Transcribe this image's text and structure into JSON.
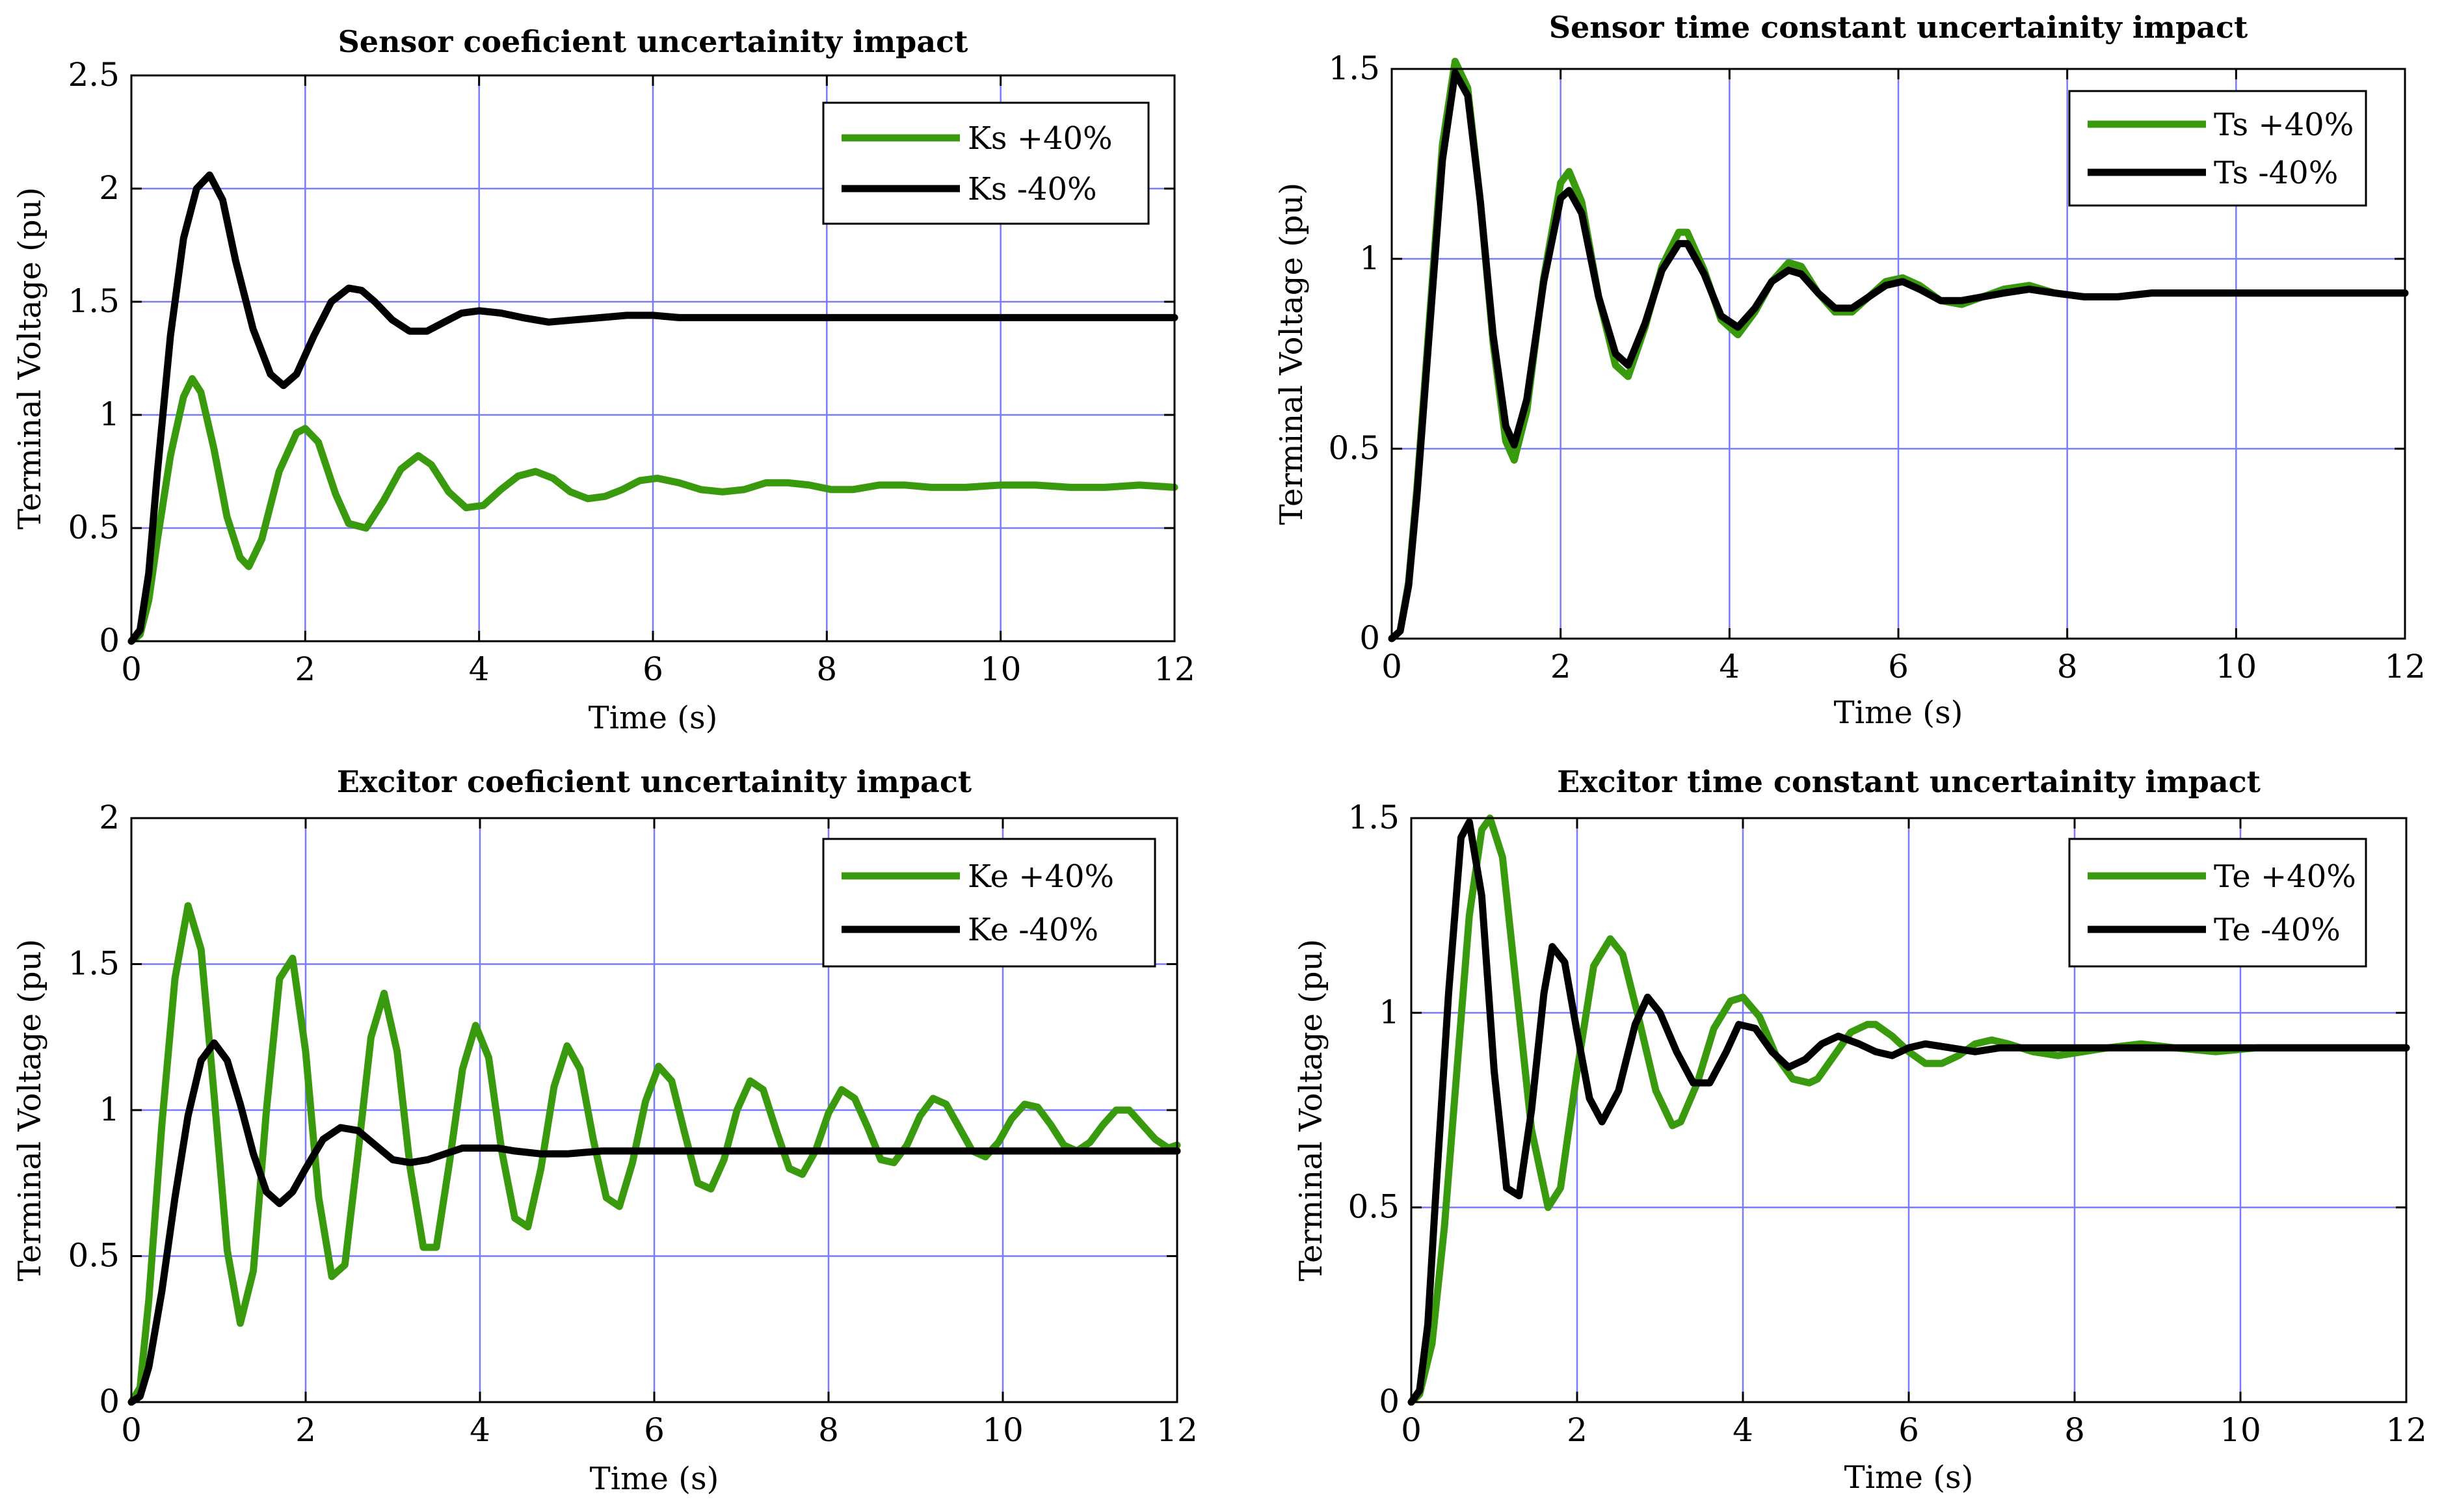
{
  "colors": {
    "green": "#3a9a0e",
    "black": "#000000",
    "grid": "#7a7aff"
  },
  "chart_data": [
    {
      "type": "line",
      "title": "Sensor coeficient uncertainity impact",
      "xlabel": "Time (s)",
      "ylabel": "Terminal Voltage (pu)",
      "xlim": [
        0,
        12
      ],
      "ylim": [
        0,
        2.5
      ],
      "xticks": [
        0,
        2,
        4,
        6,
        8,
        10,
        12
      ],
      "xtick_labels": [
        "0",
        "2",
        "4",
        "6",
        "8",
        "10",
        "12"
      ],
      "yticks": [
        0,
        0.5,
        1,
        1.5,
        2,
        2.5
      ],
      "ytick_labels": [
        "0",
        "0.5",
        "1",
        "1.5",
        "2",
        "2.5"
      ],
      "legend_position": "top-right",
      "grid": true,
      "series": [
        {
          "name": "Ks +40%",
          "color": "#3a9a0e",
          "x": [
            0,
            0.1,
            0.2,
            0.3,
            0.45,
            0.6,
            0.7,
            0.8,
            0.95,
            1.1,
            1.25,
            1.35,
            1.5,
            1.7,
            1.9,
            2.0,
            2.15,
            2.35,
            2.5,
            2.7,
            2.9,
            3.1,
            3.3,
            3.45,
            3.65,
            3.85,
            4.05,
            4.25,
            4.45,
            4.65,
            4.85,
            5.05,
            5.25,
            5.45,
            5.65,
            5.85,
            6.05,
            6.3,
            6.55,
            6.8,
            7.05,
            7.3,
            7.55,
            7.8,
            8.05,
            8.3,
            8.6,
            8.9,
            9.2,
            9.6,
            10.0,
            10.4,
            10.8,
            11.2,
            11.6,
            12.0
          ],
          "y": [
            0,
            0.03,
            0.18,
            0.45,
            0.82,
            1.08,
            1.16,
            1.1,
            0.85,
            0.55,
            0.37,
            0.33,
            0.45,
            0.75,
            0.92,
            0.94,
            0.88,
            0.65,
            0.52,
            0.5,
            0.62,
            0.76,
            0.82,
            0.78,
            0.66,
            0.59,
            0.6,
            0.67,
            0.73,
            0.75,
            0.72,
            0.66,
            0.63,
            0.64,
            0.67,
            0.71,
            0.72,
            0.7,
            0.67,
            0.66,
            0.67,
            0.7,
            0.7,
            0.69,
            0.67,
            0.67,
            0.69,
            0.69,
            0.68,
            0.68,
            0.69,
            0.69,
            0.68,
            0.68,
            0.69,
            0.68
          ]
        },
        {
          "name": "Ks -40%",
          "color": "#000000",
          "x": [
            0,
            0.1,
            0.2,
            0.3,
            0.45,
            0.6,
            0.75,
            0.9,
            1.05,
            1.2,
            1.4,
            1.6,
            1.75,
            1.9,
            2.1,
            2.3,
            2.5,
            2.65,
            2.8,
            3.0,
            3.2,
            3.4,
            3.6,
            3.8,
            4.0,
            4.25,
            4.5,
            4.8,
            5.1,
            5.4,
            5.7,
            6.0,
            6.3,
            6.7,
            7.2,
            7.8,
            8.5,
            9.2,
            10.0,
            11.0,
            12.0
          ],
          "y": [
            0,
            0.05,
            0.3,
            0.75,
            1.35,
            1.78,
            2.0,
            2.06,
            1.95,
            1.68,
            1.38,
            1.18,
            1.13,
            1.18,
            1.35,
            1.5,
            1.56,
            1.55,
            1.5,
            1.42,
            1.37,
            1.37,
            1.41,
            1.45,
            1.46,
            1.45,
            1.43,
            1.41,
            1.42,
            1.43,
            1.44,
            1.44,
            1.43,
            1.43,
            1.43,
            1.43,
            1.43,
            1.43,
            1.43,
            1.43,
            1.43
          ]
        }
      ]
    },
    {
      "type": "line",
      "title": "Sensor time constant uncertainity impact",
      "xlabel": "Time (s)",
      "ylabel": "Terminal Voltage (pu)",
      "xlim": [
        0,
        12
      ],
      "ylim": [
        0,
        1.5
      ],
      "xticks": [
        0,
        2,
        4,
        6,
        8,
        10,
        12
      ],
      "xtick_labels": [
        "0",
        "2",
        "4",
        "6",
        "8",
        "10",
        "12"
      ],
      "yticks": [
        0,
        0.5,
        1,
        1.5
      ],
      "ytick_labels": [
        "0",
        "0.5",
        "1",
        "1.5"
      ],
      "legend_position": "top-right",
      "grid": true,
      "series": [
        {
          "name": "Ts +40%",
          "color": "#3a9a0e",
          "x": [
            0,
            0.1,
            0.2,
            0.3,
            0.45,
            0.6,
            0.75,
            0.9,
            1.05,
            1.2,
            1.35,
            1.45,
            1.6,
            1.8,
            2.0,
            2.1,
            2.25,
            2.45,
            2.65,
            2.8,
            3.0,
            3.2,
            3.4,
            3.5,
            3.7,
            3.9,
            4.1,
            4.3,
            4.5,
            4.7,
            4.85,
            5.05,
            5.25,
            5.45,
            5.65,
            5.85,
            6.05,
            6.25,
            6.5,
            6.75,
            7.0,
            7.25,
            7.55,
            7.85,
            8.2,
            8.6,
            9.0,
            9.5,
            10.0,
            10.5,
            11.0,
            11.5,
            12.0
          ],
          "y": [
            0,
            0.02,
            0.15,
            0.4,
            0.85,
            1.3,
            1.52,
            1.45,
            1.15,
            0.78,
            0.52,
            0.47,
            0.6,
            0.95,
            1.2,
            1.23,
            1.15,
            0.9,
            0.72,
            0.69,
            0.82,
            0.98,
            1.07,
            1.07,
            0.97,
            0.84,
            0.8,
            0.86,
            0.94,
            0.99,
            0.98,
            0.91,
            0.86,
            0.86,
            0.9,
            0.94,
            0.95,
            0.93,
            0.89,
            0.88,
            0.9,
            0.92,
            0.93,
            0.91,
            0.9,
            0.9,
            0.91,
            0.91,
            0.91,
            0.91,
            0.91,
            0.91,
            0.91
          ]
        },
        {
          "name": "Ts -40%",
          "color": "#000000",
          "x": [
            0,
            0.1,
            0.2,
            0.3,
            0.45,
            0.6,
            0.75,
            0.9,
            1.05,
            1.2,
            1.35,
            1.45,
            1.6,
            1.8,
            2.0,
            2.1,
            2.25,
            2.45,
            2.65,
            2.8,
            3.0,
            3.2,
            3.4,
            3.5,
            3.7,
            3.9,
            4.1,
            4.3,
            4.5,
            4.7,
            4.85,
            5.05,
            5.25,
            5.45,
            5.65,
            5.85,
            6.05,
            6.25,
            6.5,
            6.75,
            7.0,
            7.25,
            7.55,
            7.85,
            8.2,
            8.6,
            9.0,
            9.5,
            10.0,
            10.5,
            11.0,
            11.5,
            12.0
          ],
          "y": [
            0,
            0.02,
            0.14,
            0.38,
            0.82,
            1.26,
            1.49,
            1.43,
            1.15,
            0.8,
            0.56,
            0.51,
            0.63,
            0.94,
            1.16,
            1.18,
            1.12,
            0.9,
            0.75,
            0.72,
            0.83,
            0.97,
            1.04,
            1.04,
            0.96,
            0.85,
            0.82,
            0.87,
            0.94,
            0.97,
            0.96,
            0.91,
            0.87,
            0.87,
            0.9,
            0.93,
            0.94,
            0.92,
            0.89,
            0.89,
            0.9,
            0.91,
            0.92,
            0.91,
            0.9,
            0.9,
            0.91,
            0.91,
            0.91,
            0.91,
            0.91,
            0.91,
            0.91
          ]
        }
      ]
    },
    {
      "type": "line",
      "title": "Excitor coeficient uncertainity impact",
      "xlabel": "Time (s)",
      "ylabel": "Terminal Voltage (pu)",
      "xlim": [
        0,
        12
      ],
      "ylim": [
        0,
        2
      ],
      "xticks": [
        0,
        2,
        4,
        6,
        8,
        10,
        12
      ],
      "xtick_labels": [
        "0",
        "2",
        "4",
        "6",
        "8",
        "10",
        "12"
      ],
      "yticks": [
        0,
        0.5,
        1,
        1.5,
        2
      ],
      "ytick_labels": [
        "0",
        "0.5",
        "1",
        "1.5",
        "2"
      ],
      "legend_position": "top-right",
      "grid": true,
      "series": [
        {
          "name": "Ke +40%",
          "color": "#3a9a0e",
          "x": [
            0,
            0.1,
            0.2,
            0.35,
            0.5,
            0.65,
            0.8,
            0.95,
            1.1,
            1.25,
            1.4,
            1.55,
            1.7,
            1.85,
            2.0,
            2.15,
            2.3,
            2.45,
            2.6,
            2.75,
            2.9,
            3.05,
            3.2,
            3.35,
            3.5,
            3.65,
            3.8,
            3.95,
            4.1,
            4.25,
            4.4,
            4.55,
            4.7,
            4.85,
            5.0,
            5.15,
            5.3,
            5.45,
            5.6,
            5.75,
            5.9,
            6.05,
            6.2,
            6.35,
            6.5,
            6.65,
            6.8,
            6.95,
            7.1,
            7.25,
            7.4,
            7.55,
            7.7,
            7.85,
            8.0,
            8.15,
            8.3,
            8.45,
            8.6,
            8.75,
            8.9,
            9.05,
            9.2,
            9.35,
            9.5,
            9.65,
            9.8,
            9.95,
            10.1,
            10.25,
            10.4,
            10.55,
            10.7,
            10.85,
            11.0,
            11.15,
            11.3,
            11.45,
            11.6,
            11.75,
            11.9,
            12.0
          ],
          "y": [
            0,
            0.05,
            0.35,
            0.95,
            1.45,
            1.7,
            1.55,
            1.05,
            0.52,
            0.27,
            0.45,
            1.0,
            1.45,
            1.52,
            1.2,
            0.7,
            0.43,
            0.47,
            0.85,
            1.25,
            1.4,
            1.2,
            0.8,
            0.53,
            0.53,
            0.82,
            1.14,
            1.29,
            1.18,
            0.86,
            0.63,
            0.6,
            0.8,
            1.08,
            1.22,
            1.14,
            0.9,
            0.7,
            0.67,
            0.82,
            1.03,
            1.15,
            1.1,
            0.92,
            0.75,
            0.73,
            0.83,
            1.0,
            1.1,
            1.07,
            0.93,
            0.8,
            0.78,
            0.86,
            0.99,
            1.07,
            1.04,
            0.94,
            0.83,
            0.82,
            0.88,
            0.98,
            1.04,
            1.02,
            0.94,
            0.86,
            0.84,
            0.89,
            0.97,
            1.02,
            1.01,
            0.95,
            0.88,
            0.86,
            0.89,
            0.95,
            1.0,
            1.0,
            0.95,
            0.9,
            0.87,
            0.88
          ]
        },
        {
          "name": "Ke -40%",
          "color": "#000000",
          "x": [
            0,
            0.1,
            0.2,
            0.35,
            0.5,
            0.65,
            0.8,
            0.95,
            1.1,
            1.25,
            1.4,
            1.55,
            1.7,
            1.85,
            2.0,
            2.2,
            2.4,
            2.6,
            2.8,
            3.0,
            3.2,
            3.4,
            3.6,
            3.8,
            4.0,
            4.2,
            4.4,
            4.7,
            5.0,
            5.4,
            5.8,
            6.2,
            6.8,
            7.5,
            8.5,
            9.5,
            10.5,
            11.5,
            12.0
          ],
          "y": [
            0,
            0.02,
            0.12,
            0.38,
            0.7,
            0.98,
            1.17,
            1.23,
            1.17,
            1.02,
            0.85,
            0.72,
            0.68,
            0.72,
            0.8,
            0.9,
            0.94,
            0.93,
            0.88,
            0.83,
            0.82,
            0.83,
            0.85,
            0.87,
            0.87,
            0.87,
            0.86,
            0.85,
            0.85,
            0.86,
            0.86,
            0.86,
            0.86,
            0.86,
            0.86,
            0.86,
            0.86,
            0.86,
            0.86
          ]
        }
      ]
    },
    {
      "type": "line",
      "title": "Excitor time constant uncertainity impact",
      "xlabel": "Time (s)",
      "ylabel": "Terminal Voltage (pu)",
      "xlim": [
        0,
        12
      ],
      "ylim": [
        0,
        1.5
      ],
      "xticks": [
        0,
        2,
        4,
        6,
        8,
        10,
        12
      ],
      "xtick_labels": [
        "0",
        "2",
        "4",
        "6",
        "8",
        "10",
        "12"
      ],
      "yticks": [
        0,
        0.5,
        1,
        1.5
      ],
      "ytick_labels": [
        "0",
        "0.5",
        "1",
        "1.5"
      ],
      "legend_position": "top-right",
      "grid": true,
      "series": [
        {
          "name": "Te +40%",
          "color": "#3a9a0e",
          "x": [
            0,
            0.1,
            0.25,
            0.4,
            0.55,
            0.7,
            0.85,
            0.95,
            1.1,
            1.25,
            1.45,
            1.65,
            1.8,
            2.0,
            2.2,
            2.4,
            2.55,
            2.75,
            2.95,
            3.15,
            3.25,
            3.45,
            3.65,
            3.85,
            4.0,
            4.2,
            4.4,
            4.6,
            4.8,
            4.9,
            5.1,
            5.3,
            5.5,
            5.6,
            5.8,
            6.0,
            6.2,
            6.4,
            6.6,
            6.8,
            7.0,
            7.2,
            7.5,
            7.8,
            8.1,
            8.4,
            8.8,
            9.2,
            9.7,
            10.2,
            10.8,
            11.4,
            12.0
          ],
          "y": [
            0,
            0.02,
            0.15,
            0.45,
            0.85,
            1.25,
            1.47,
            1.5,
            1.4,
            1.1,
            0.7,
            0.5,
            0.55,
            0.85,
            1.12,
            1.19,
            1.15,
            0.98,
            0.8,
            0.71,
            0.72,
            0.82,
            0.96,
            1.03,
            1.04,
            0.99,
            0.89,
            0.83,
            0.82,
            0.83,
            0.89,
            0.95,
            0.97,
            0.97,
            0.94,
            0.9,
            0.87,
            0.87,
            0.89,
            0.92,
            0.93,
            0.92,
            0.9,
            0.89,
            0.9,
            0.91,
            0.92,
            0.91,
            0.9,
            0.91,
            0.91,
            0.91,
            0.91
          ]
        },
        {
          "name": "Te -40%",
          "color": "#000000",
          "x": [
            0,
            0.1,
            0.2,
            0.3,
            0.45,
            0.6,
            0.7,
            0.85,
            1.0,
            1.15,
            1.3,
            1.45,
            1.6,
            1.7,
            1.85,
            2.0,
            2.15,
            2.3,
            2.5,
            2.7,
            2.85,
            3.0,
            3.2,
            3.4,
            3.6,
            3.8,
            3.95,
            4.15,
            4.35,
            4.55,
            4.75,
            4.95,
            5.15,
            5.4,
            5.6,
            5.8,
            6.0,
            6.2,
            6.5,
            6.8,
            7.1,
            7.5,
            8.0,
            8.5,
            9.0,
            10.0,
            11.0,
            12.0
          ],
          "y": [
            0,
            0.03,
            0.2,
            0.55,
            1.05,
            1.45,
            1.49,
            1.3,
            0.85,
            0.55,
            0.53,
            0.75,
            1.05,
            1.17,
            1.13,
            0.95,
            0.78,
            0.72,
            0.8,
            0.97,
            1.04,
            1.0,
            0.9,
            0.82,
            0.82,
            0.9,
            0.97,
            0.96,
            0.9,
            0.86,
            0.88,
            0.92,
            0.94,
            0.92,
            0.9,
            0.89,
            0.91,
            0.92,
            0.91,
            0.9,
            0.91,
            0.91,
            0.91,
            0.91,
            0.91,
            0.91,
            0.91,
            0.91
          ]
        }
      ]
    }
  ]
}
